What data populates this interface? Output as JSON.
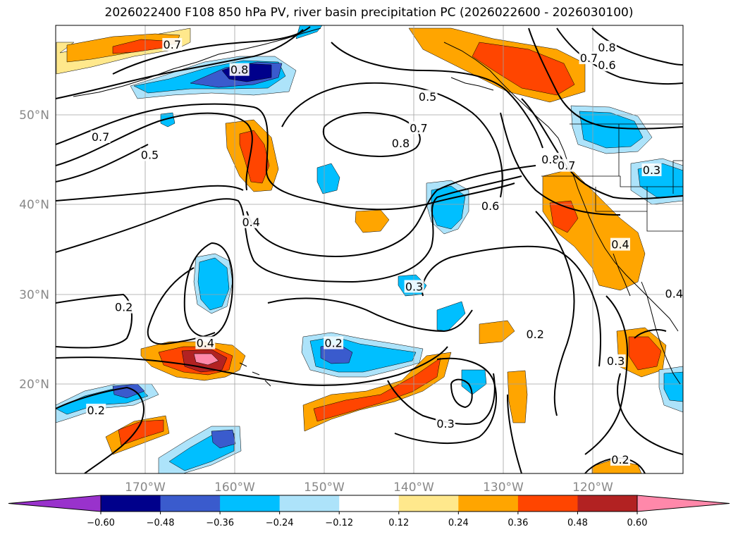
{
  "title": "2026022400 F108 850 hPa PV, river basin precipitation PC (2026022600 - 2026030100)",
  "map": {
    "lat_labels": [
      "50°N",
      "40°N",
      "30°N",
      "20°N"
    ],
    "lon_labels": [
      "170°W",
      "160°W",
      "150°W",
      "140°W",
      "130°W",
      "120°W"
    ],
    "contour_labels": [
      {
        "text": "0.7",
        "lon": -167,
        "lat": 57.8
      },
      {
        "text": "0.8",
        "lon": -159.5,
        "lat": 55
      },
      {
        "text": "0.7",
        "lon": -175,
        "lat": 47.5
      },
      {
        "text": "0.5",
        "lon": -169.5,
        "lat": 45.5
      },
      {
        "text": "0.4",
        "lon": -158.2,
        "lat": 38
      },
      {
        "text": "0.2",
        "lon": -172.4,
        "lat": 28.5
      },
      {
        "text": "0.4",
        "lon": -163.3,
        "lat": 24.5
      },
      {
        "text": "0.2",
        "lon": -149,
        "lat": 24.5
      },
      {
        "text": "0.3",
        "lon": -140,
        "lat": 30.8
      },
      {
        "text": "0.2",
        "lon": -175.5,
        "lat": 17
      },
      {
        "text": "0.6",
        "lon": -131.5,
        "lat": 39.8
      },
      {
        "text": "0.8",
        "lon": -141.5,
        "lat": 46.8
      },
      {
        "text": "0.7",
        "lon": -139.5,
        "lat": 48.5
      },
      {
        "text": "0.5",
        "lon": -138.5,
        "lat": 52
      },
      {
        "text": "0.8",
        "lon": -118.5,
        "lat": 57.5
      },
      {
        "text": "0.7",
        "lon": -120.5,
        "lat": 56.3
      },
      {
        "text": "0.6",
        "lon": -118.5,
        "lat": 55.5
      },
      {
        "text": "0.8",
        "lon": -124.8,
        "lat": 45
      },
      {
        "text": "0.7",
        "lon": -123,
        "lat": 44.3
      },
      {
        "text": "0.3",
        "lon": -113.5,
        "lat": 43.8
      },
      {
        "text": "0.4",
        "lon": -117,
        "lat": 35.5
      },
      {
        "text": "0.2",
        "lon": -126.5,
        "lat": 25.5
      },
      {
        "text": "0.3",
        "lon": -117.5,
        "lat": 22.5
      },
      {
        "text": "0.4",
        "lon": -111,
        "lat": 30
      },
      {
        "text": "0.3",
        "lon": -136.5,
        "lat": 15.5
      },
      {
        "text": "0.2",
        "lon": -117,
        "lat": 11.5
      }
    ]
  },
  "colorbar": {
    "labels": [
      "−0.60",
      "−0.48",
      "−0.36",
      "−0.24",
      "−0.12",
      "0.12",
      "0.24",
      "0.36",
      "0.48",
      "0.60"
    ],
    "colors": [
      "#9932cc",
      "#00008b",
      "#3a5bcd",
      "#00bfff",
      "#ade3fa",
      "#ffffff",
      "#ffe88c",
      "#ffa500",
      "#ff4500",
      "#b22222",
      "#ff88aa"
    ]
  }
}
